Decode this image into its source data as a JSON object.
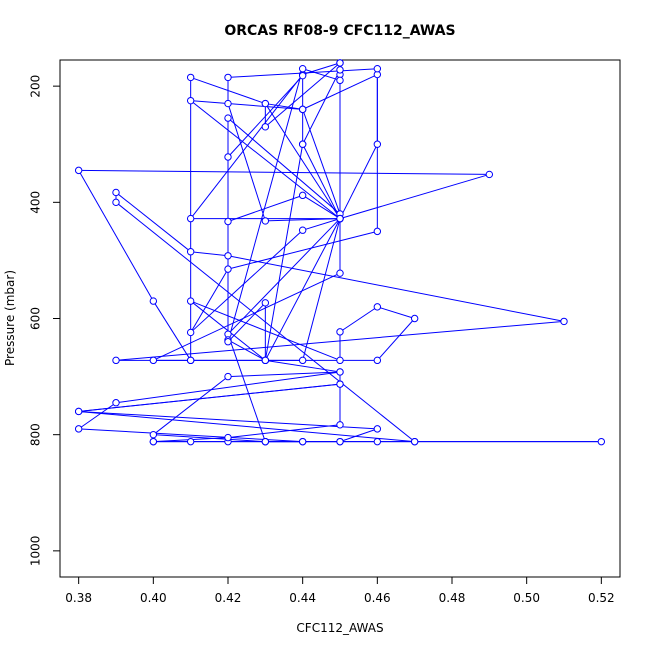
{
  "chart_data": {
    "type": "line",
    "title": "ORCAS RF08-9 CFC112_AWAS",
    "xlabel": "CFC112_AWAS",
    "ylabel": "Pressure (mbar)",
    "xlim": [
      0.375,
      0.525
    ],
    "ylim": [
      1045,
      155
    ],
    "y_reversed": true,
    "x_ticks": [
      "0.38",
      "0.40",
      "0.42",
      "0.44",
      "0.46",
      "0.48",
      "0.50",
      "0.52"
    ],
    "y_ticks": [
      "200",
      "400",
      "600",
      "800",
      "1000"
    ],
    "grid": false,
    "series": [
      {
        "color": "#0000ff",
        "marker": "open-circle",
        "points": [
          [
            0.4,
            812
          ],
          [
            0.41,
            812
          ],
          [
            0.42,
            812
          ],
          [
            0.43,
            812
          ],
          [
            0.44,
            812
          ],
          [
            0.45,
            812
          ],
          [
            0.46,
            812
          ],
          [
            0.47,
            812
          ],
          [
            0.52,
            812
          ],
          [
            0.4,
            812
          ],
          [
            0.42,
            805
          ],
          [
            0.45,
            783
          ],
          [
            0.45,
            713
          ],
          [
            0.38,
            760
          ],
          [
            0.46,
            790
          ],
          [
            0.45,
            812
          ],
          [
            0.43,
            812
          ],
          [
            0.42,
            627
          ],
          [
            0.45,
            428
          ],
          [
            0.43,
            672
          ],
          [
            0.45,
            692
          ],
          [
            0.39,
            745
          ],
          [
            0.38,
            790
          ],
          [
            0.44,
            812
          ],
          [
            0.43,
            812
          ],
          [
            0.4,
            800
          ],
          [
            0.42,
            700
          ],
          [
            0.45,
            692
          ],
          [
            0.45,
            713
          ],
          [
            0.38,
            760
          ],
          [
            0.47,
            812
          ],
          [
            0.39,
            400
          ],
          [
            0.39,
            383
          ],
          [
            0.41,
            485
          ],
          [
            0.42,
            492
          ],
          [
            0.51,
            605
          ],
          [
            0.39,
            672
          ],
          [
            0.41,
            672
          ],
          [
            0.41,
            185
          ],
          [
            0.43,
            230
          ],
          [
            0.43,
            270
          ],
          [
            0.45,
            160
          ],
          [
            0.44,
            180
          ],
          [
            0.41,
            428
          ],
          [
            0.45,
            428
          ],
          [
            0.43,
            230
          ],
          [
            0.44,
            240
          ],
          [
            0.45,
            420
          ],
          [
            0.42,
            255
          ],
          [
            0.42,
            433
          ],
          [
            0.44,
            388
          ],
          [
            0.45,
            428
          ],
          [
            0.49,
            352
          ],
          [
            0.38,
            345
          ],
          [
            0.4,
            570
          ],
          [
            0.41,
            672
          ],
          [
            0.46,
            672
          ],
          [
            0.47,
            600
          ],
          [
            0.46,
            580
          ],
          [
            0.45,
            623
          ],
          [
            0.45,
            672
          ],
          [
            0.41,
            570
          ],
          [
            0.43,
            672
          ],
          [
            0.42,
            637
          ],
          [
            0.42,
            322
          ],
          [
            0.44,
            182
          ],
          [
            0.44,
            300
          ],
          [
            0.45,
            428
          ],
          [
            0.41,
            225
          ],
          [
            0.44,
            240
          ],
          [
            0.46,
            180
          ],
          [
            0.46,
            300
          ],
          [
            0.45,
            428
          ],
          [
            0.44,
            448
          ],
          [
            0.41,
            624
          ],
          [
            0.42,
            515
          ],
          [
            0.46,
            450
          ],
          [
            0.46,
            170
          ],
          [
            0.42,
            185
          ],
          [
            0.42,
            230
          ],
          [
            0.43,
            432
          ],
          [
            0.45,
            428
          ],
          [
            0.44,
            672
          ],
          [
            0.4,
            672
          ],
          [
            0.45,
            522
          ],
          [
            0.45,
            180
          ],
          [
            0.45,
            190
          ],
          [
            0.44,
            170
          ],
          [
            0.42,
            640
          ],
          [
            0.43,
            573
          ],
          [
            0.43,
            672
          ],
          [
            0.44,
            300
          ],
          [
            0.45,
            172
          ],
          [
            0.45,
            160
          ]
        ]
      }
    ]
  }
}
